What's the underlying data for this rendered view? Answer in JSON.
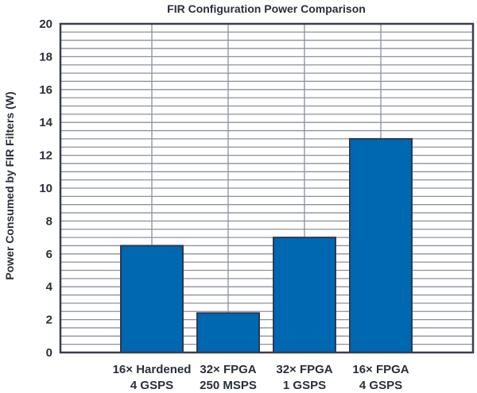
{
  "chart_data": {
    "type": "bar",
    "title": "FIR Configuration Power Comparison",
    "xlabel": "",
    "ylabel": "Power Consumed by FIR Filters (W)",
    "ylim": [
      0,
      20
    ],
    "yticks": [
      0,
      2,
      4,
      6,
      8,
      10,
      12,
      14,
      16,
      18,
      20
    ],
    "minor_grid_step": 0.5,
    "grid": true,
    "categories": [
      [
        "16× Hardened",
        "4 GSPS"
      ],
      [
        "32× FPGA",
        "250 MSPS"
      ],
      [
        "32× FPGA",
        "1 GSPS"
      ],
      [
        "16× FPGA",
        "4 GSPS"
      ]
    ],
    "values": [
      6.5,
      2.4,
      7.0,
      13.0
    ],
    "colors": {
      "bar": "#0067b1",
      "bar_edge": "#2b3a55",
      "grid": "#8c90a0",
      "axis": "#3a3f4e"
    }
  }
}
